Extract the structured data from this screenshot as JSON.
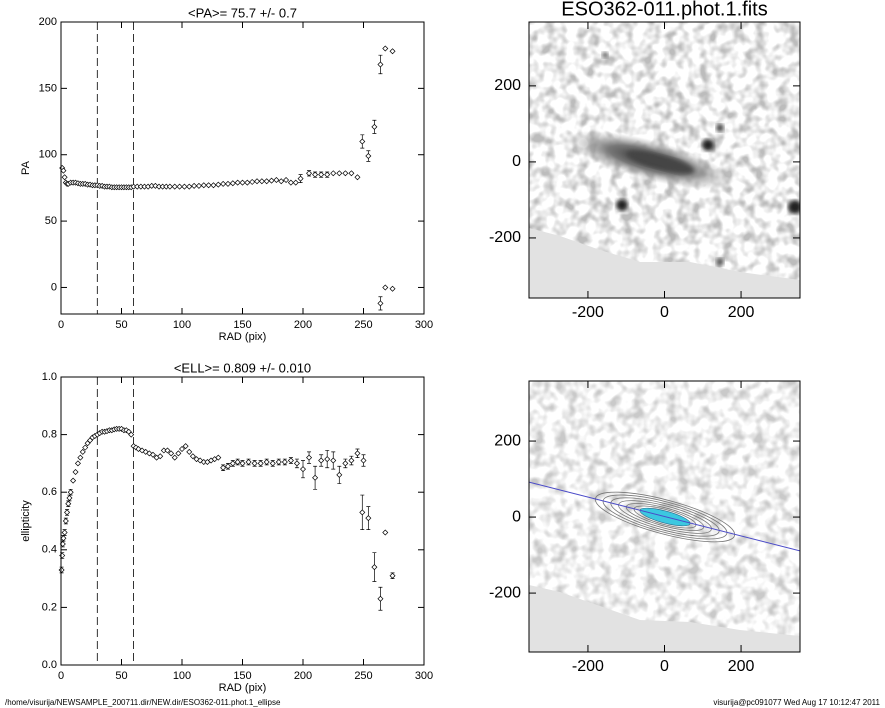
{
  "chart_data": [
    {
      "type": "scatter",
      "title": "<PA>=  75.7 +/-   0.7",
      "xlabel": "RAD (pix)",
      "ylabel": "PA",
      "xlim": [
        0,
        300
      ],
      "ylim": [
        -20,
        200
      ],
      "xticks": [
        0,
        50,
        100,
        150,
        200,
        250,
        300
      ],
      "yticks": [
        0,
        50,
        100,
        150,
        200
      ],
      "vlines": [
        30,
        60
      ],
      "color": "#000000",
      "x": [
        1,
        2,
        3,
        4,
        5,
        6,
        8,
        10,
        12,
        14,
        16,
        18,
        20,
        22,
        24,
        26,
        28,
        30,
        32,
        34,
        36,
        38,
        40,
        42,
        44,
        46,
        48,
        50,
        52,
        54,
        56,
        58,
        60,
        63,
        66,
        69,
        72,
        75,
        78,
        81,
        84,
        87,
        90,
        94,
        98,
        102,
        106,
        110,
        114,
        118,
        122,
        126,
        130,
        134,
        138,
        142,
        146,
        150,
        154,
        158,
        162,
        166,
        170,
        174,
        178,
        182,
        186,
        190,
        194,
        198,
        205,
        210,
        215,
        220,
        225,
        230,
        235,
        240,
        245,
        249,
        254,
        259,
        264,
        268,
        274,
        264,
        268,
        274
      ],
      "values": [
        90,
        88,
        83,
        79,
        78,
        78,
        79,
        79,
        79,
        78.5,
        78,
        78,
        78,
        77.5,
        77.5,
        77,
        77,
        77,
        76.5,
        76.5,
        76,
        76,
        76,
        75.5,
        75.5,
        75.5,
        75.5,
        75.5,
        75.5,
        75.5,
        75.5,
        75.5,
        76,
        76,
        76,
        76,
        76,
        76.5,
        76.5,
        76,
        76,
        76,
        76,
        76,
        76,
        76,
        76,
        76.5,
        76.5,
        77,
        77,
        77,
        77.5,
        78,
        78,
        78.5,
        79,
        79,
        79,
        79.5,
        80,
        80,
        80,
        80.5,
        81,
        80,
        81,
        79,
        79,
        82,
        86,
        85,
        85,
        85,
        86,
        86,
        86,
        86,
        83,
        110,
        99,
        121,
        168,
        180,
        178,
        -12,
        0,
        -1
      ],
      "errors": [
        1.5,
        1.2,
        1,
        0.8,
        0.6,
        0.5,
        0.4,
        0.4,
        0.4,
        0.4,
        0.4,
        0.4,
        0.4,
        0.4,
        0.4,
        0.4,
        0.4,
        0.4,
        0.4,
        0.4,
        0.4,
        0.4,
        0.4,
        0.4,
        0.4,
        0.4,
        0.4,
        0.4,
        0.4,
        0.4,
        0.4,
        0.4,
        0.4,
        0.4,
        0.4,
        0.4,
        0.4,
        0.4,
        0.4,
        0.4,
        0.4,
        0.4,
        0.4,
        0.4,
        0.4,
        0.4,
        0.4,
        0.4,
        0.4,
        0.4,
        0.4,
        0.4,
        0.4,
        0.4,
        0.4,
        0.4,
        0.4,
        0.4,
        0.4,
        0.4,
        0.4,
        0.4,
        0.4,
        0.4,
        0.4,
        0.4,
        0.4,
        0.4,
        0.4,
        3,
        2,
        2,
        2,
        2,
        1.5,
        1.5,
        1.5,
        1.5,
        1.5,
        5,
        4,
        5,
        7,
        1.5,
        1.5,
        5,
        1.5,
        1.5
      ]
    },
    {
      "type": "scatter",
      "title": "<ELL>= 0.809 +/-  0.010",
      "xlabel": "RAD (pix)",
      "ylabel": "ellipticity",
      "xlim": [
        0,
        300
      ],
      "ylim": [
        0,
        1
      ],
      "xticks": [
        0,
        50,
        100,
        150,
        200,
        250,
        300
      ],
      "yticks": [
        {
          "value": 0,
          "label": "0.0"
        },
        0.2,
        0.4,
        0.6,
        0.8,
        {
          "value": 1,
          "label": "1.0"
        }
      ],
      "vlines": [
        30,
        60
      ],
      "color": "#000000",
      "x": [
        0.5,
        1,
        1.5,
        2,
        3,
        4,
        5,
        6,
        7,
        8,
        10,
        12,
        14,
        16,
        18,
        20,
        22,
        24,
        26,
        28,
        30,
        32,
        34,
        36,
        38,
        40,
        42,
        44,
        46,
        48,
        50,
        52,
        54,
        56,
        58,
        60,
        62,
        64,
        67,
        70,
        73,
        76,
        79,
        82,
        85,
        88,
        91,
        94,
        97,
        100,
        103,
        106,
        109,
        112,
        115,
        118,
        121,
        124,
        127,
        130,
        134,
        138,
        142,
        146,
        150,
        155,
        160,
        165,
        170,
        175,
        180,
        185,
        190,
        195,
        200,
        205,
        210,
        215,
        220,
        225,
        230,
        235,
        240,
        245,
        250,
        249,
        254,
        259,
        264,
        268,
        274
      ],
      "values": [
        0.33,
        0.38,
        0.42,
        0.44,
        0.46,
        0.5,
        0.53,
        0.56,
        0.58,
        0.6,
        0.64,
        0.67,
        0.7,
        0.72,
        0.74,
        0.755,
        0.77,
        0.78,
        0.79,
        0.795,
        0.8,
        0.805,
        0.81,
        0.81,
        0.812,
        0.815,
        0.815,
        0.818,
        0.82,
        0.82,
        0.82,
        0.815,
        0.815,
        0.81,
        0.8,
        0.76,
        0.755,
        0.75,
        0.745,
        0.74,
        0.735,
        0.73,
        0.72,
        0.725,
        0.745,
        0.745,
        0.735,
        0.72,
        0.735,
        0.75,
        0.76,
        0.74,
        0.725,
        0.715,
        0.71,
        0.705,
        0.705,
        0.71,
        0.715,
        0.72,
        0.685,
        0.69,
        0.7,
        0.705,
        0.7,
        0.705,
        0.7,
        0.7,
        0.705,
        0.7,
        0.705,
        0.705,
        0.71,
        0.7,
        0.68,
        0.72,
        0.65,
        0.71,
        0.715,
        0.71,
        0.66,
        0.7,
        0.71,
        0.735,
        0.71,
        0.53,
        0.51,
        0.34,
        0.23,
        0.46,
        0.31
      ],
      "errors": [
        0.01,
        0.01,
        0.01,
        0.01,
        0.01,
        0.01,
        0.01,
        0.01,
        0.01,
        0.01,
        0.004,
        0.004,
        0.004,
        0.004,
        0.004,
        0.004,
        0.004,
        0.004,
        0.004,
        0.004,
        0.004,
        0.004,
        0.004,
        0.004,
        0.004,
        0.004,
        0.004,
        0.004,
        0.004,
        0.004,
        0.004,
        0.004,
        0.004,
        0.004,
        0.004,
        0.004,
        0.004,
        0.004,
        0.004,
        0.004,
        0.004,
        0.004,
        0.004,
        0.004,
        0.004,
        0.004,
        0.004,
        0.004,
        0.004,
        0.004,
        0.004,
        0.004,
        0.004,
        0.004,
        0.004,
        0.004,
        0.004,
        0.004,
        0.004,
        0.004,
        0.01,
        0.01,
        0.01,
        0.01,
        0.01,
        0.01,
        0.01,
        0.01,
        0.01,
        0.01,
        0.01,
        0.01,
        0.01,
        0.015,
        0.03,
        0.02,
        0.04,
        0.02,
        0.03,
        0.03,
        0.03,
        0.015,
        0.015,
        0.015,
        0.02,
        0.06,
        0.04,
        0.05,
        0.04,
        0.005,
        0.01
      ]
    },
    {
      "type": "image",
      "title": "ESO362-011.phot.1.fits",
      "xlim": [
        -354,
        354
      ],
      "ylim": [
        -358,
        368
      ],
      "xticks": [
        -200,
        0,
        200
      ],
      "yticks": [
        -200,
        0,
        200
      ]
    },
    {
      "type": "image",
      "xlim": [
        -354,
        354
      ],
      "ylim": [
        -355,
        358
      ],
      "xticks": [
        -200,
        0,
        200
      ],
      "yticks": [
        -200,
        0,
        200
      ],
      "line": {
        "x": [
          -354,
          354
        ],
        "y": [
          92,
          -89
        ],
        "color": "#4a4ac8"
      }
    }
  ],
  "footer": {
    "left": "/home/visurija/NEWSAMPLE_200711.dir/NEW.dir/ESO362-011.phot.1_ellipse",
    "right": "visurija@pc091077  Wed Aug 17 10:12:47 2011"
  }
}
